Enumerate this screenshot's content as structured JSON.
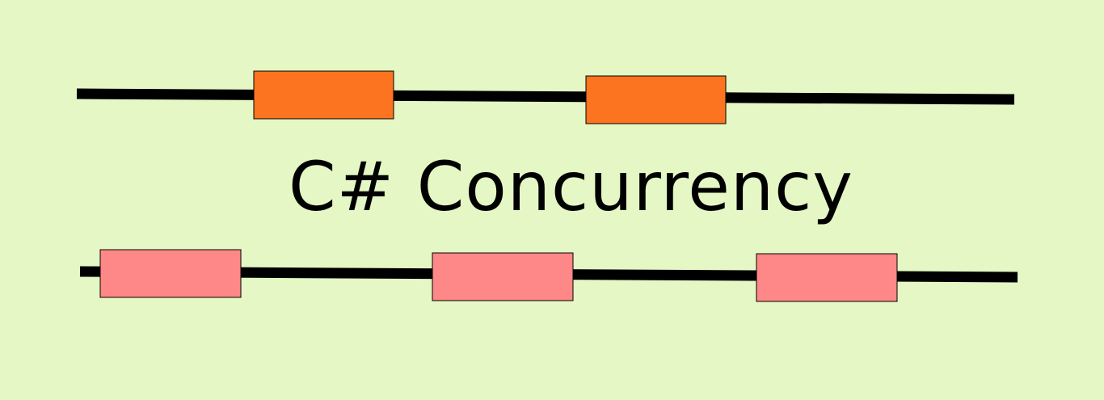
{
  "title": "C# Concurrency",
  "colors": {
    "background": "#e4f7c4",
    "line": "#000000",
    "top_blocks": "#fc7320",
    "bottom_blocks": "#fe8787",
    "text": "#000000"
  }
}
